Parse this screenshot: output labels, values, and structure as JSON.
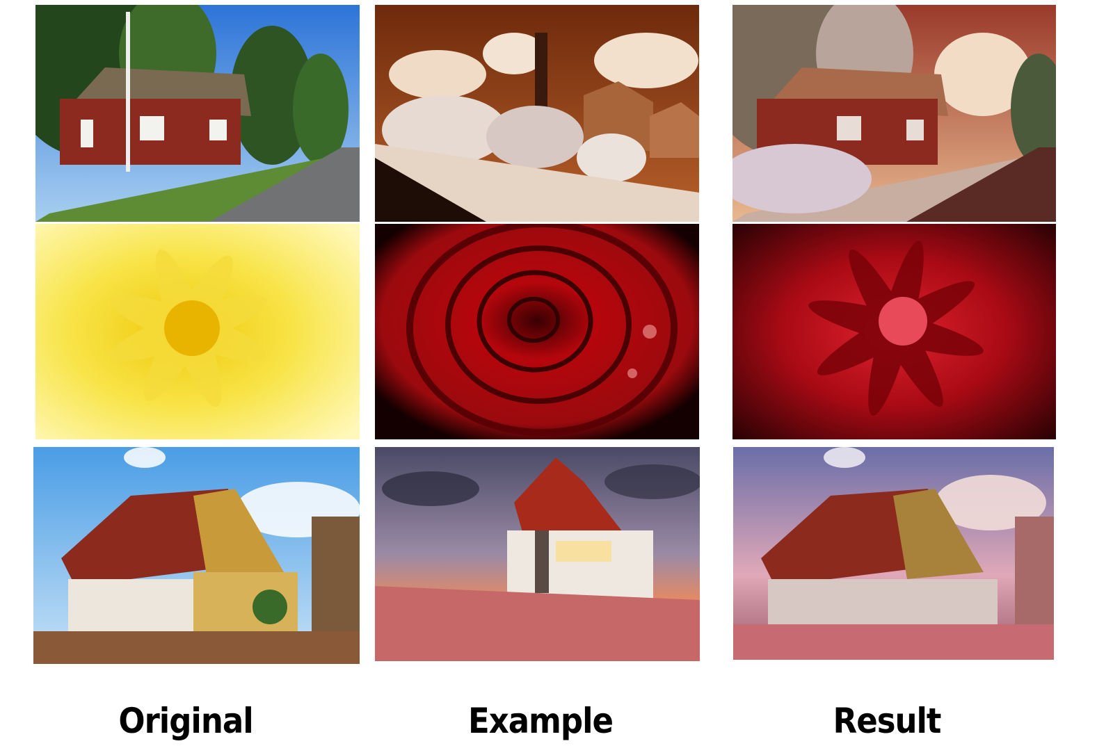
{
  "columns": [
    {
      "label": "Original"
    },
    {
      "label": "Example"
    },
    {
      "label": "Result"
    }
  ],
  "rows": [
    {
      "original": {
        "subject": "red-wooden-house-by-road",
        "sky": "#3f86df",
        "accent": "#8c2a20"
      },
      "example": {
        "subject": "infrared-town-with-church",
        "sky": "#7a3211",
        "accent": "#e6d4c4"
      },
      "result": {
        "subject": "house-with-infrared-style",
        "sky": "#c46a3a",
        "accent": "#8c2a20"
      }
    },
    {
      "original": {
        "subject": "yellow-dahlia-closeup",
        "sky": "#fff2a0",
        "accent": "#f4d81e"
      },
      "example": {
        "subject": "red-rose-with-water-drops",
        "sky": "#1a0000",
        "accent": "#b5060c"
      },
      "result": {
        "subject": "dahlia-with-red-rose-style",
        "sky": "#2a0204",
        "accent": "#c4101a"
      }
    },
    {
      "original": {
        "subject": "thai-temple-blue-sky",
        "sky": "#5aa7e8",
        "accent": "#8b2a1d"
      },
      "example": {
        "subject": "thai-temple-dramatic-sunset",
        "sky": "#5b5a74",
        "accent": "#e7704a"
      },
      "result": {
        "subject": "temple-with-sunset-style",
        "sky": "#8a78a8",
        "accent": "#8b2a1d"
      }
    }
  ]
}
